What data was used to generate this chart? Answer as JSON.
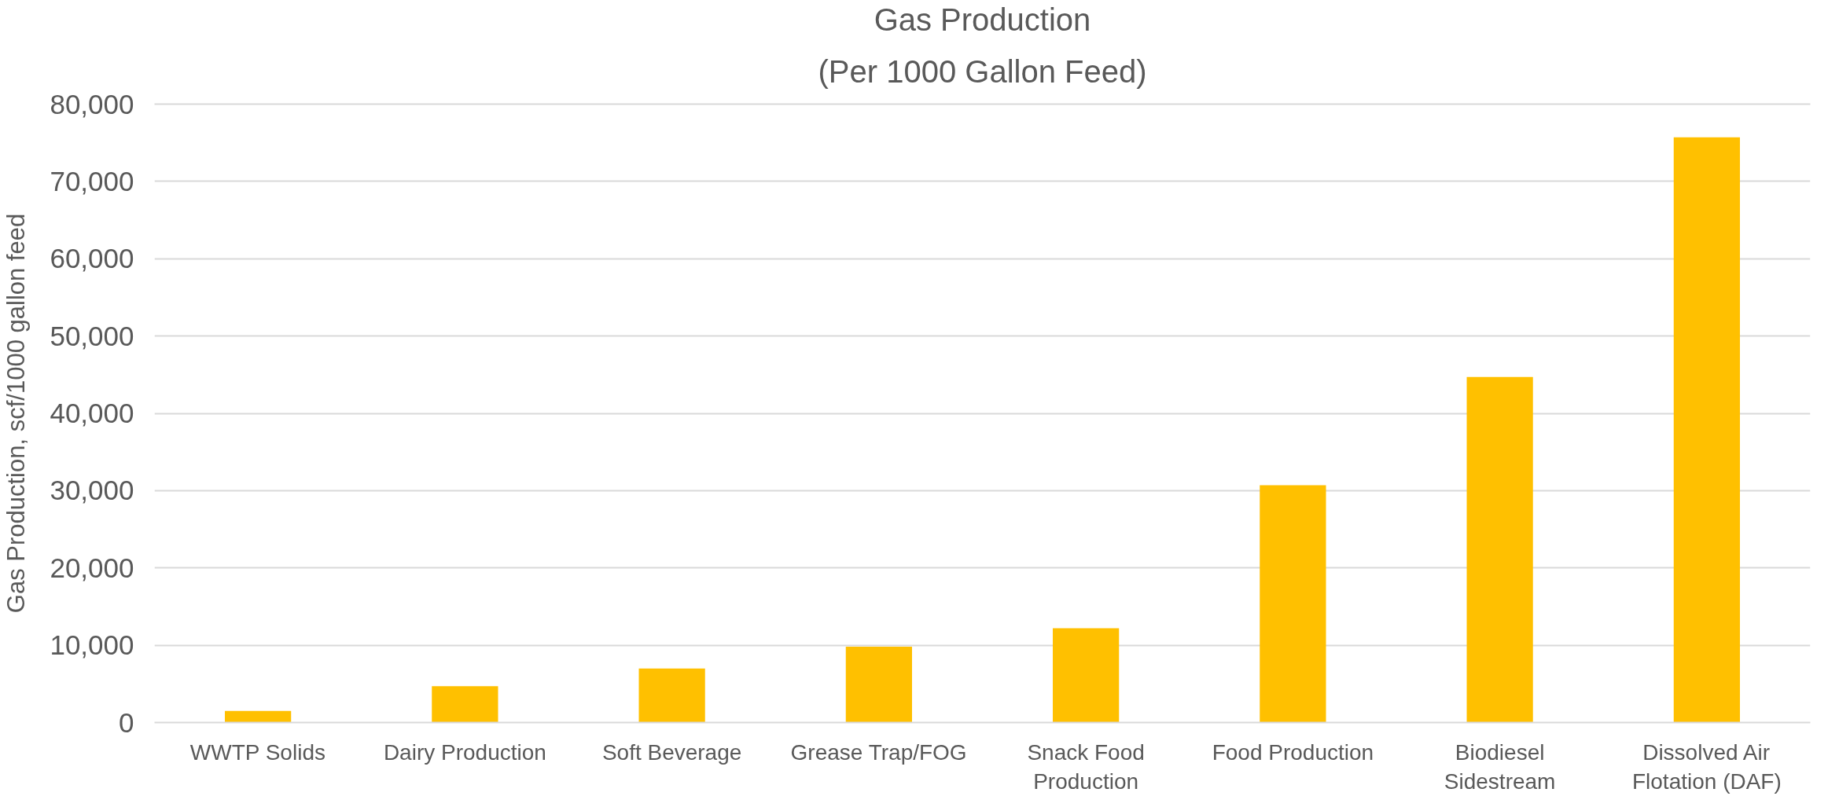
{
  "chart_data": {
    "type": "bar",
    "title": "Gas Production",
    "subtitle": "(Per 1000 Gallon Feed)",
    "ylabel": "Gas Production, scf/1000 gallon feed",
    "categories": [
      "WWTP Solids",
      "Dairy Production",
      "Soft Beverage",
      "Grease Trap/FOG",
      "Snack Food Production",
      "Food Production",
      "Biodiesel Sidestream",
      "Dissolved Air Flotation (DAF)"
    ],
    "values": [
      1500,
      4700,
      7000,
      9800,
      12200,
      30700,
      44700,
      75700
    ],
    "color": "#ffc000",
    "ylim": [
      0,
      80000
    ],
    "yticks": [
      {
        "value": 0,
        "label": "0"
      },
      {
        "value": 10000,
        "label": "10,000"
      },
      {
        "value": 20000,
        "label": "20,000"
      },
      {
        "value": 30000,
        "label": "30,000"
      },
      {
        "value": 40000,
        "label": "40,000"
      },
      {
        "value": 50000,
        "label": "50,000"
      },
      {
        "value": 60000,
        "label": "60,000"
      },
      {
        "value": 70000,
        "label": "70,000"
      },
      {
        "value": 80000,
        "label": "80,000"
      }
    ],
    "grid": "y"
  }
}
